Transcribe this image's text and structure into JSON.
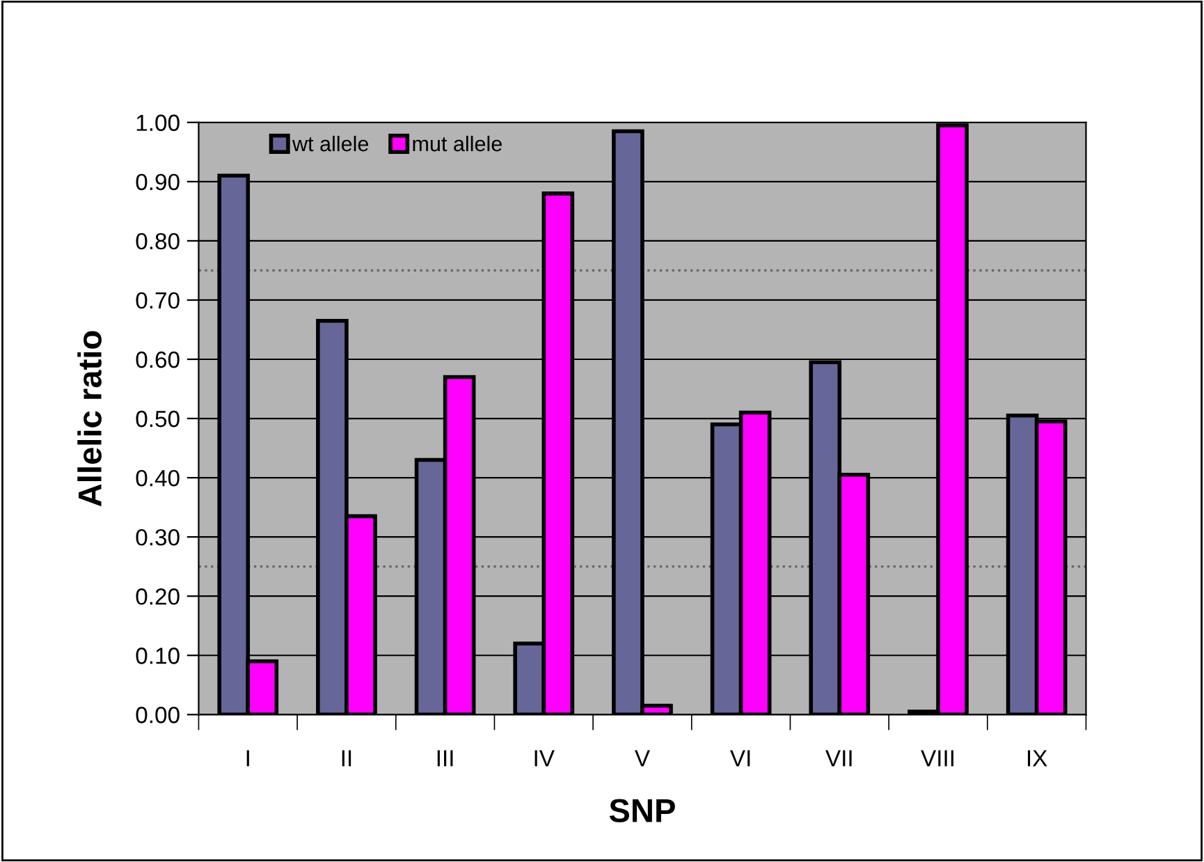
{
  "chart_data": {
    "type": "bar",
    "xlabel": "SNP",
    "ylabel": "Allelic ratio",
    "categories": [
      "I",
      "II",
      "III",
      "IV",
      "V",
      "VI",
      "VII",
      "VIII",
      "IX"
    ],
    "series": [
      {
        "name": "wt allele",
        "color": "#666699",
        "values": [
          0.91,
          0.665,
          0.43,
          0.12,
          0.985,
          0.49,
          0.595,
          0.005,
          0.505
        ]
      },
      {
        "name": "mut allele",
        "color": "#ff00ff",
        "values": [
          0.09,
          0.335,
          0.57,
          0.88,
          0.015,
          0.51,
          0.405,
          0.995,
          0.495
        ]
      }
    ],
    "ylim": [
      0,
      1
    ],
    "yticks": [
      {
        "value": 0,
        "label": "0.00"
      },
      {
        "value": 0.1,
        "label": "0.10"
      },
      {
        "value": 0.2,
        "label": "0.20"
      },
      {
        "value": 0.3,
        "label": "0.30"
      },
      {
        "value": 0.4,
        "label": "0.40"
      },
      {
        "value": 0.5,
        "label": "0.50"
      },
      {
        "value": 0.6,
        "label": "0.60"
      },
      {
        "value": 0.7,
        "label": "0.70"
      },
      {
        "value": 0.8,
        "label": "0.80"
      },
      {
        "value": 0.9,
        "label": "0.90"
      },
      {
        "value": 1,
        "label": "1.00"
      }
    ],
    "ref_lines": [
      {
        "axis": "y",
        "value": 0.75,
        "color": "#666666",
        "line_style": "dotted"
      },
      {
        "axis": "y",
        "value": 0.25,
        "color": "#666666",
        "line_style": "dotted"
      }
    ],
    "grid": "y",
    "legend": "top left"
  }
}
